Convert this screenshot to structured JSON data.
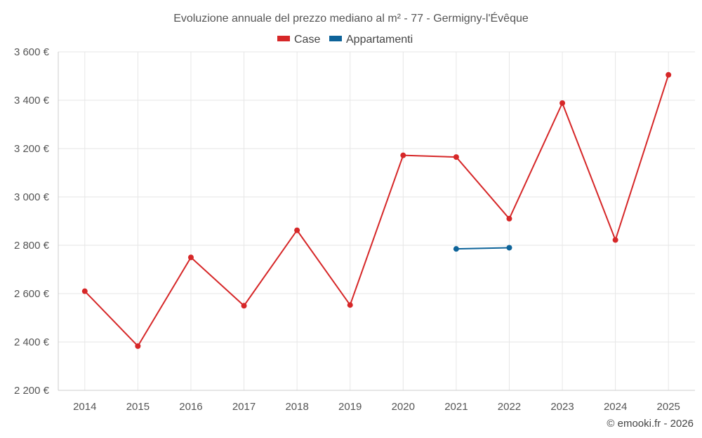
{
  "chart_data": {
    "type": "line",
    "title": "Evoluzione annuale del prezzo mediano al m² - 77 - Germigny-l'Évêque",
    "x": [
      "2014",
      "2015",
      "2016",
      "2017",
      "2018",
      "2019",
      "2020",
      "2021",
      "2022",
      "2023",
      "2024",
      "2025"
    ],
    "series": [
      {
        "name": "Case",
        "color": "#d62728",
        "values": [
          2610,
          2383,
          2750,
          2550,
          2862,
          2553,
          3172,
          3165,
          2910,
          3388,
          2822,
          3505
        ]
      },
      {
        "name": "Appartamenti",
        "color": "#0d6399",
        "values": [
          null,
          null,
          null,
          null,
          null,
          null,
          null,
          2785,
          2790,
          null,
          null,
          null
        ]
      }
    ],
    "ylim": [
      2200,
      3600
    ],
    "yticks": [
      2200,
      2400,
      2600,
      2800,
      3000,
      3200,
      3400,
      3600
    ],
    "ytick_labels": [
      "2 200 €",
      "2 400 €",
      "2 600 €",
      "2 800 €",
      "3 000 €",
      "3 200 €",
      "3 400 €",
      "3 600 €"
    ],
    "xlabel": "",
    "ylabel": "",
    "grid": true,
    "legend_position": "top-center",
    "credit": "© emooki.fr - 2026"
  }
}
